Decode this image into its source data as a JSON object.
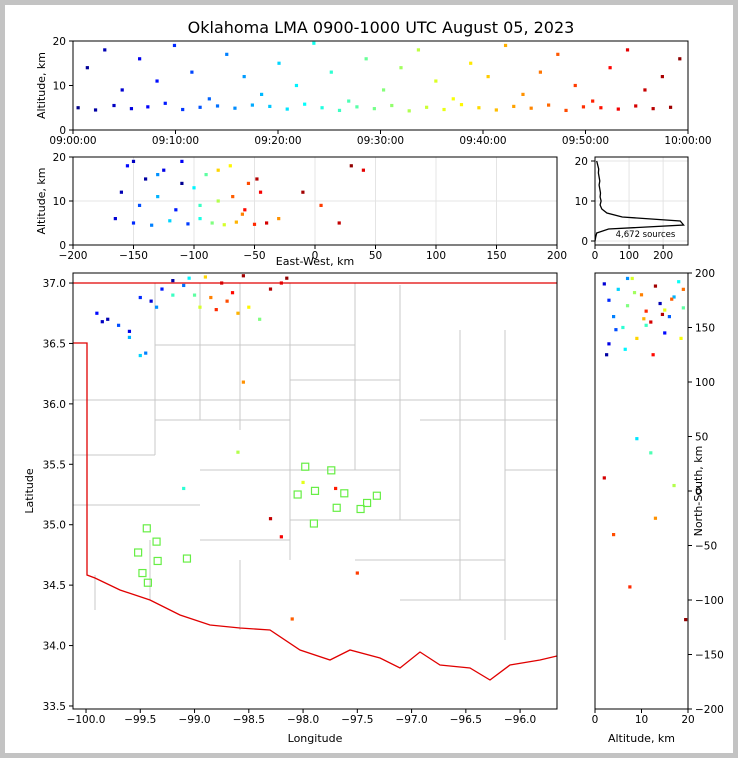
{
  "chart_data": [
    {
      "type": "scatter",
      "title": "Oklahoma LMA 0900-1000 UTC August 05, 2023",
      "ylabel": "Altitude, km",
      "colormap": "jet",
      "clim": [
        0,
        60
      ],
      "grid": false,
      "xlim": [
        0,
        60
      ],
      "xticks": [
        {
          "value": 0,
          "label": "09:00:00"
        },
        {
          "value": 10,
          "label": "09:10:00"
        },
        {
          "value": 20,
          "label": "09:20:00"
        },
        {
          "value": 30,
          "label": "09:30:00"
        },
        {
          "value": 40,
          "label": "09:40:00"
        },
        {
          "value": 50,
          "label": "09:50:00"
        },
        {
          "value": 60,
          "label": "10:00:00"
        }
      ],
      "ylim": [
        0,
        20
      ],
      "yticks": [
        0,
        10,
        20
      ],
      "x": [
        0.5,
        1.4,
        2.2,
        3.1,
        4.0,
        4.8,
        5.7,
        6.5,
        7.3,
        8.2,
        9.0,
        9.9,
        10.7,
        11.6,
        12.4,
        13.3,
        14.1,
        15.0,
        15.8,
        16.7,
        17.5,
        18.4,
        19.2,
        20.1,
        20.9,
        21.8,
        22.6,
        23.5,
        24.3,
        25.2,
        26.0,
        26.9,
        27.7,
        28.6,
        29.4,
        30.3,
        31.1,
        32.0,
        32.8,
        33.7,
        34.5,
        35.4,
        36.2,
        37.1,
        37.9,
        38.8,
        39.6,
        40.5,
        41.3,
        42.2,
        43.0,
        43.9,
        44.7,
        45.6,
        46.4,
        47.3,
        48.1,
        49.0,
        49.8,
        50.7,
        51.5,
        52.4,
        53.2,
        54.1,
        54.9,
        55.8,
        56.6,
        57.5,
        58.3,
        59.2
      ],
      "values": [
        5,
        14,
        4.5,
        18,
        5.5,
        9,
        4.8,
        16,
        5.2,
        11,
        6,
        19,
        4.6,
        13,
        5.1,
        7,
        5.4,
        17,
        4.9,
        12,
        5.6,
        8,
        5.3,
        15,
        4.7,
        10,
        5.8,
        19.5,
        5,
        13,
        4.4,
        6.5,
        5.2,
        16,
        4.8,
        9,
        5.5,
        14,
        4.3,
        18,
        5.1,
        11,
        4.6,
        7,
        5.7,
        15,
        5,
        12,
        4.5,
        19,
        5.3,
        8,
        4.9,
        13,
        5.6,
        17,
        4.4,
        10,
        5.2,
        6.5,
        5,
        14,
        4.7,
        18,
        5.4,
        9,
        4.8,
        12,
        5.1,
        16
      ]
    },
    {
      "type": "scatter",
      "xlabel": "East-West, km",
      "ylabel": "Altitude, km",
      "colormap": "jet",
      "clim": [
        0,
        60
      ],
      "grid": true,
      "xlim": [
        -200,
        200
      ],
      "xticks": [
        {
          "value": -200,
          "label": "−200"
        },
        {
          "value": -150,
          "label": "−150"
        },
        {
          "value": -100,
          "label": "−100"
        },
        {
          "value": -50,
          "label": "−50"
        },
        0,
        50,
        100,
        150,
        200
      ],
      "ylim": [
        0,
        20
      ],
      "yticks": [
        0,
        10,
        20
      ],
      "x": [
        -165,
        -160,
        -155,
        -150,
        -145,
        -140,
        -135,
        -130,
        -125,
        -120,
        -115,
        -110,
        -105,
        -100,
        -95,
        -90,
        -85,
        -80,
        -75,
        -70,
        -65,
        -60,
        -55,
        -50,
        -45,
        -40,
        -150,
        -130,
        -110,
        -95,
        -80,
        -68,
        -58,
        -48,
        -30,
        -10,
        5,
        20,
        30,
        40
      ],
      "values": [
        6,
        12,
        18,
        5,
        9,
        15,
        4.5,
        11,
        17,
        5.5,
        8,
        19,
        4.8,
        13,
        6,
        16,
        5,
        10,
        4.6,
        18,
        5.2,
        7,
        14,
        4.7,
        12,
        5,
        19,
        16,
        14,
        9,
        17,
        11,
        8,
        15,
        6,
        12,
        9,
        5,
        18,
        17
      ],
      "time": [
        5,
        3,
        8,
        10,
        12,
        2,
        15,
        18,
        6,
        20,
        9,
        7,
        11,
        22,
        24,
        28,
        30,
        33,
        35,
        38,
        42,
        45,
        48,
        50,
        53,
        55,
        4,
        16,
        1,
        26,
        40,
        47,
        52,
        57,
        44,
        58,
        49,
        56,
        59,
        54
      ]
    },
    {
      "type": "line",
      "orientation": "horizontal",
      "annotation": "4,672 sources",
      "color": "#000000",
      "grid": true,
      "xlim": [
        0,
        273
      ],
      "xticks": [
        0,
        100,
        200
      ],
      "ylim": [
        -1,
        21
      ],
      "yticks": [
        0,
        10,
        20
      ],
      "altitude": [
        0,
        1,
        2,
        3,
        4,
        5,
        6,
        7,
        8,
        9,
        10,
        11,
        12,
        13,
        14,
        15,
        16,
        17,
        18,
        19,
        20
      ],
      "values": [
        0,
        2,
        5,
        40,
        260,
        250,
        80,
        35,
        20,
        15,
        18,
        15,
        16,
        14,
        12,
        14,
        12,
        10,
        11,
        8,
        5
      ]
    },
    {
      "type": "scatter",
      "xlabel": "Longitude",
      "ylabel": "Latitude",
      "colormap": "jet",
      "clim": [
        0,
        60
      ],
      "grid": false,
      "xlim": [
        -100.12,
        -95.66
      ],
      "xticks": [
        {
          "value": -100,
          "label": "−100.0"
        },
        {
          "value": -99.5,
          "label": "−99.5"
        },
        {
          "value": -99,
          "label": "−99.0"
        },
        {
          "value": -98.5,
          "label": "−98.5"
        },
        {
          "value": -98,
          "label": "−98.0"
        },
        {
          "value": -97.5,
          "label": "−97.5"
        },
        {
          "value": -97,
          "label": "−97.0"
        },
        {
          "value": -96.5,
          "label": "−96.5"
        },
        {
          "value": -96,
          "label": "−96.0"
        }
      ],
      "ylim": [
        33.475,
        37.083
      ],
      "yticks": [
        33.5,
        {
          "value": 34,
          "label": "34.0"
        },
        34.5,
        {
          "value": 35,
          "label": "35.0"
        },
        35.5,
        {
          "value": 36,
          "label": "36.0"
        },
        36.5,
        {
          "value": 37,
          "label": "37.0"
        }
      ],
      "x": [
        -99.9,
        -99.8,
        -99.7,
        -99.6,
        -99.5,
        -99.45,
        -99.4,
        -99.3,
        -99.2,
        -99.1,
        -99.05,
        -99.0,
        -98.95,
        -98.9,
        -98.85,
        -98.8,
        -98.75,
        -98.7,
        -98.65,
        -98.6,
        -98.55,
        -98.5,
        -98.4,
        -98.3,
        -98.2,
        -98.15,
        -99.6,
        -99.35,
        -99.85,
        -99.5,
        -99.2,
        -98.6,
        -98.55,
        -98.1,
        -98.0,
        -97.7,
        -98.3,
        -99.1,
        -98.2,
        -97.5
      ],
      "values": [
        36.75,
        36.7,
        36.65,
        36.6,
        36.88,
        36.42,
        36.85,
        36.95,
        37.02,
        36.98,
        37.04,
        36.9,
        36.8,
        37.05,
        36.88,
        36.78,
        37.0,
        36.85,
        36.92,
        36.75,
        37.06,
        36.8,
        36.7,
        36.95,
        37.0,
        37.04,
        36.55,
        36.8,
        36.68,
        36.4,
        36.9,
        35.6,
        36.18,
        34.22,
        35.35,
        35.3,
        35.05,
        35.3,
        34.9,
        34.6
      ],
      "time": [
        8,
        3,
        12,
        6,
        10,
        15,
        5,
        9,
        2,
        14,
        22,
        28,
        35,
        40,
        45,
        50,
        55,
        48,
        52,
        42,
        58,
        38,
        30,
        57,
        54,
        59,
        18,
        16,
        4,
        20,
        26,
        33,
        44,
        47,
        36,
        51,
        56,
        25,
        53,
        49
      ],
      "stations": {
        "color": "#66ee44",
        "lon": [
          -97.98,
          -97.74,
          -98.05,
          -97.89,
          -97.62,
          -97.69,
          -97.9,
          -97.47,
          -97.41,
          -97.32,
          -99.44,
          -99.35,
          -99.52,
          -99.34,
          -99.07,
          -99.48,
          -99.43
        ],
        "lat": [
          35.48,
          35.45,
          35.25,
          35.28,
          35.26,
          35.14,
          35.01,
          35.13,
          35.18,
          35.24,
          34.97,
          34.86,
          34.77,
          34.7,
          34.72,
          34.6,
          34.52
        ]
      }
    },
    {
      "type": "scatter",
      "xlabel": "Altitude, km",
      "ylabel": "North-South, km",
      "y_axis_side": "right",
      "colormap": "jet",
      "clim": [
        0,
        60
      ],
      "grid": false,
      "xlim": [
        0,
        20
      ],
      "xticks": [
        0,
        10,
        20
      ],
      "ylim": [
        -200,
        200
      ],
      "yticks": [
        {
          "value": -200,
          "label": "−200"
        },
        {
          "value": -150,
          "label": "−150"
        },
        {
          "value": -100,
          "label": "−100"
        },
        {
          "value": -50,
          "label": "−50"
        },
        0,
        50,
        100,
        150,
        200
      ],
      "x": [
        2,
        3,
        4,
        5,
        6,
        7,
        8,
        9,
        10,
        11,
        12,
        13,
        14,
        15,
        16,
        17,
        18,
        19,
        2.5,
        4.5,
        6.5,
        8.5,
        10.5,
        12.5,
        14.5,
        16.5,
        18.5,
        3,
        7,
        11,
        15,
        19,
        2,
        9,
        13,
        17,
        19.5,
        7.5,
        12,
        4
      ],
      "values": [
        190,
        175,
        160,
        185,
        150,
        170,
        195,
        140,
        180,
        165,
        155,
        188,
        172,
        145,
        160,
        178,
        192,
        168,
        125,
        148,
        130,
        182,
        158,
        125,
        162,
        176,
        140,
        135,
        195,
        152,
        166,
        185,
        12,
        48,
        -25,
        5,
        -118,
        -88,
        35,
        -40
      ],
      "time": [
        5,
        10,
        15,
        20,
        25,
        30,
        35,
        40,
        45,
        50,
        55,
        58,
        3,
        8,
        13,
        18,
        23,
        28,
        2,
        12,
        22,
        32,
        42,
        52,
        57,
        47,
        37,
        6,
        16,
        26,
        36,
        46,
        55,
        21,
        44,
        33,
        59,
        50,
        27,
        48
      ]
    }
  ]
}
